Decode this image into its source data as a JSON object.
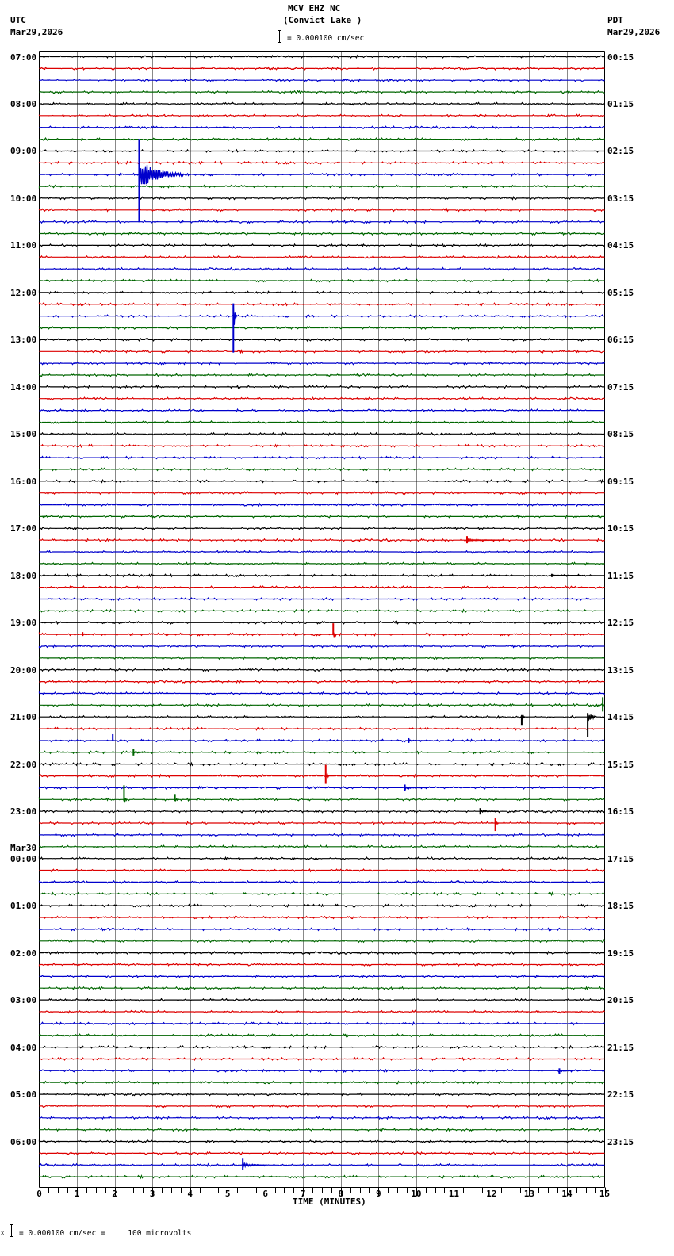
{
  "header": {
    "station": "MCV EHZ NC",
    "location": "(Convict Lake )",
    "scale": "= 0.000100 cm/sec",
    "left_tz": "UTC",
    "left_date": "Mar29,2026",
    "right_tz": "PDT",
    "right_date": "Mar29,2026"
  },
  "footer": {
    "scale_note": "= 0.000100 cm/sec =     100 microvolts",
    "prefix": "x"
  },
  "chart_data": {
    "type": "line",
    "title": "MCV EHZ NC (Convict Lake )",
    "xlabel": "TIME (MINUTES)",
    "ylabel": "",
    "xlim": [
      0,
      15
    ],
    "x_ticks": [
      0,
      1,
      2,
      3,
      4,
      5,
      6,
      7,
      8,
      9,
      10,
      11,
      12,
      13,
      14,
      15
    ],
    "rows_per_hour": 4,
    "row_minutes": 15,
    "trace_colors": [
      "#000000",
      "#dd0000",
      "#0000cc",
      "#006600"
    ],
    "left_labels": [
      {
        "row": 0,
        "text": "07:00"
      },
      {
        "row": 4,
        "text": "08:00"
      },
      {
        "row": 8,
        "text": "09:00"
      },
      {
        "row": 12,
        "text": "10:00"
      },
      {
        "row": 16,
        "text": "11:00"
      },
      {
        "row": 20,
        "text": "12:00"
      },
      {
        "row": 24,
        "text": "13:00"
      },
      {
        "row": 28,
        "text": "14:00"
      },
      {
        "row": 32,
        "text": "15:00"
      },
      {
        "row": 36,
        "text": "16:00"
      },
      {
        "row": 40,
        "text": "17:00"
      },
      {
        "row": 44,
        "text": "18:00"
      },
      {
        "row": 48,
        "text": "19:00"
      },
      {
        "row": 52,
        "text": "20:00"
      },
      {
        "row": 56,
        "text": "21:00"
      },
      {
        "row": 60,
        "text": "22:00"
      },
      {
        "row": 64,
        "text": "23:00"
      },
      {
        "row": 68,
        "text": "00:00",
        "date": "Mar30"
      },
      {
        "row": 72,
        "text": "01:00"
      },
      {
        "row": 76,
        "text": "02:00"
      },
      {
        "row": 80,
        "text": "03:00"
      },
      {
        "row": 84,
        "text": "04:00"
      },
      {
        "row": 88,
        "text": "05:00"
      },
      {
        "row": 92,
        "text": "06:00"
      }
    ],
    "right_labels": [
      {
        "row": 0,
        "text": "00:15"
      },
      {
        "row": 4,
        "text": "01:15"
      },
      {
        "row": 8,
        "text": "02:15"
      },
      {
        "row": 12,
        "text": "03:15"
      },
      {
        "row": 16,
        "text": "04:15"
      },
      {
        "row": 20,
        "text": "05:15"
      },
      {
        "row": 24,
        "text": "06:15"
      },
      {
        "row": 28,
        "text": "07:15"
      },
      {
        "row": 32,
        "text": "08:15"
      },
      {
        "row": 36,
        "text": "09:15"
      },
      {
        "row": 40,
        "text": "10:15"
      },
      {
        "row": 44,
        "text": "11:15"
      },
      {
        "row": 48,
        "text": "12:15"
      },
      {
        "row": 52,
        "text": "13:15"
      },
      {
        "row": 56,
        "text": "14:15"
      },
      {
        "row": 60,
        "text": "15:15"
      },
      {
        "row": 64,
        "text": "16:15"
      },
      {
        "row": 68,
        "text": "17:15"
      },
      {
        "row": 72,
        "text": "18:15"
      },
      {
        "row": 76,
        "text": "19:15"
      },
      {
        "row": 80,
        "text": "20:15"
      },
      {
        "row": 84,
        "text": "21:15"
      },
      {
        "row": 88,
        "text": "22:15"
      },
      {
        "row": 92,
        "text": "23:15"
      }
    ],
    "total_rows": 96,
    "events": [
      {
        "row": 10,
        "minute": 2.65,
        "up": 45,
        "down": 60,
        "coda": 1.2,
        "desc": "large event ~09:30 UTC"
      },
      {
        "row": 22,
        "minute": 5.15,
        "up": 16,
        "down": 46,
        "coda": 0.1,
        "desc": "spike ~12:30 UTC"
      },
      {
        "row": 41,
        "minute": 11.35,
        "up": 5,
        "down": 4,
        "coda": 1.0
      },
      {
        "row": 44,
        "minute": 13.6,
        "up": 2,
        "down": 2,
        "coda": 0.8
      },
      {
        "row": 49,
        "minute": 7.8,
        "up": 14,
        "down": 1,
        "coda": 0.1
      },
      {
        "row": 49,
        "minute": 1.15,
        "up": 3,
        "down": 2,
        "coda": 0.2
      },
      {
        "row": 55,
        "minute": 14.95,
        "up": 10,
        "down": 8,
        "coda": 0.05
      },
      {
        "row": 56,
        "minute": 12.8,
        "up": 2,
        "down": 10,
        "coda": 0.1
      },
      {
        "row": 56,
        "minute": 14.55,
        "up": 5,
        "down": 25,
        "coda": 0.2
      },
      {
        "row": 58,
        "minute": 1.95,
        "up": 8,
        "down": 1,
        "coda": 0.05
      },
      {
        "row": 58,
        "minute": 9.8,
        "up": 3,
        "down": 3,
        "coda": 0.6
      },
      {
        "row": 59,
        "minute": 2.5,
        "up": 4,
        "down": 4,
        "coda": 0.6
      },
      {
        "row": 61,
        "minute": 7.6,
        "up": 14,
        "down": 10,
        "coda": 0.1
      },
      {
        "row": 62,
        "minute": 9.7,
        "up": 4,
        "down": 4,
        "coda": 0.6
      },
      {
        "row": 63,
        "minute": 2.25,
        "up": 18,
        "down": 2,
        "coda": 0.1
      },
      {
        "row": 63,
        "minute": 3.6,
        "up": 7,
        "down": 2,
        "coda": 0.1
      },
      {
        "row": 64,
        "minute": 11.7,
        "up": 4,
        "down": 4,
        "coda": 0.5
      },
      {
        "row": 65,
        "minute": 12.1,
        "up": 6,
        "down": 10,
        "coda": 0.1
      },
      {
        "row": 86,
        "minute": 13.8,
        "up": 3,
        "down": 4,
        "coda": 0.4
      },
      {
        "row": 94,
        "minute": 5.4,
        "up": 8,
        "down": 6,
        "coda": 0.6
      }
    ]
  }
}
